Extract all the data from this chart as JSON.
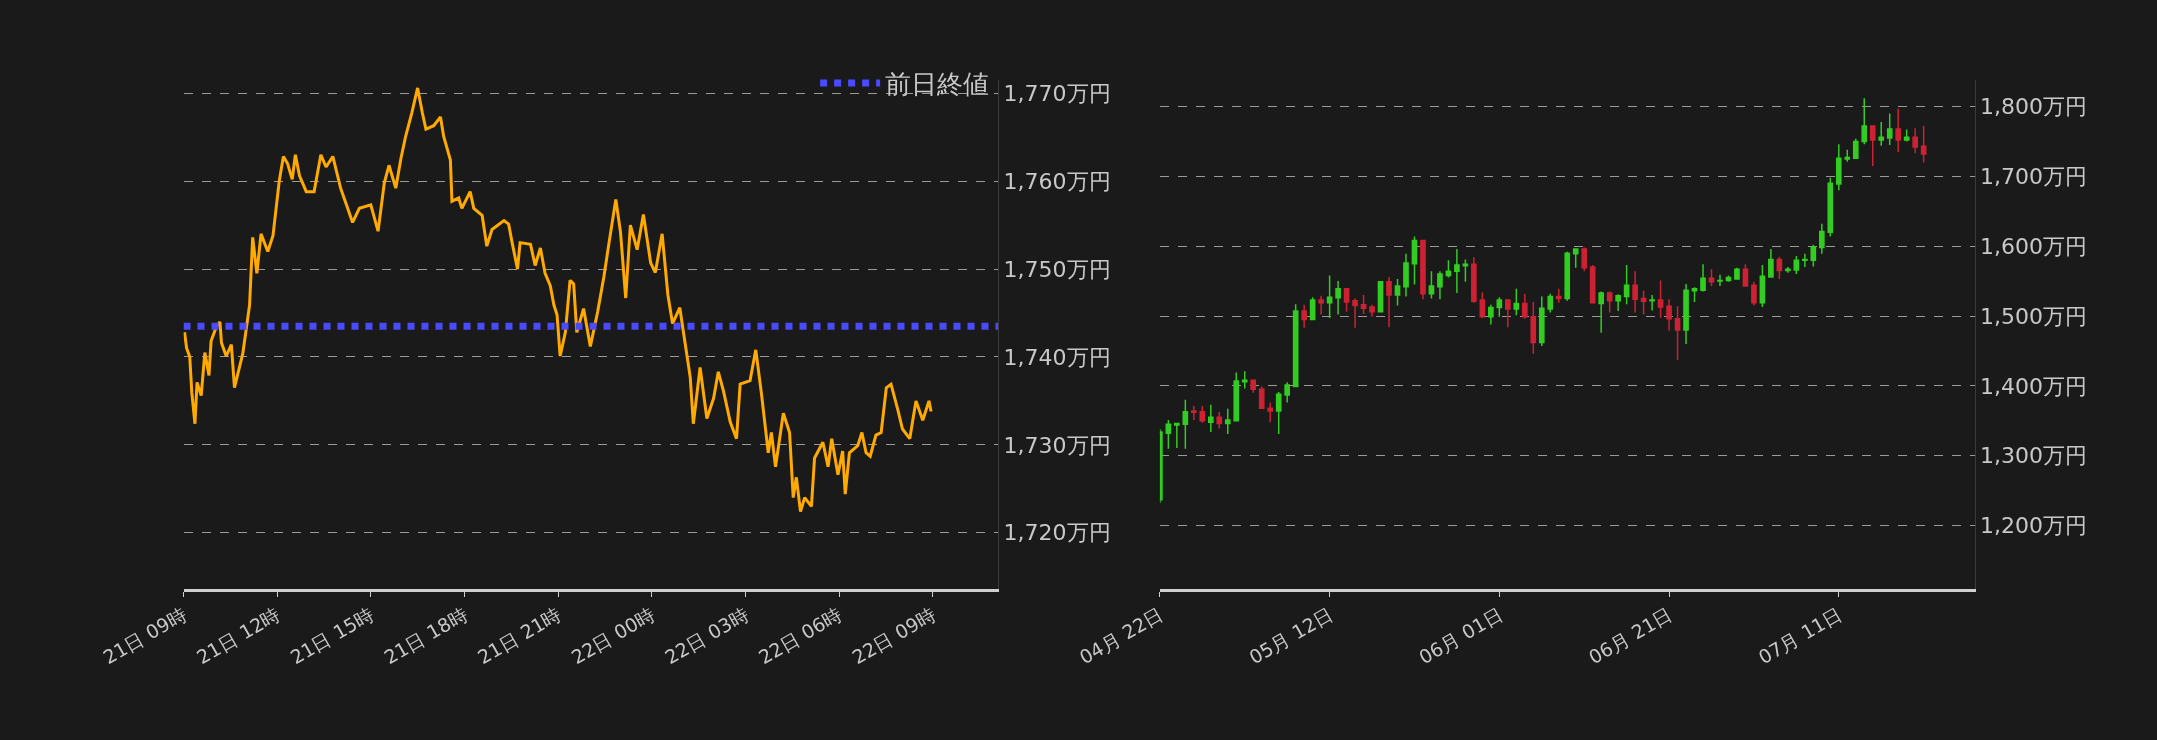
{
  "chart_data": [
    {
      "type": "line",
      "xlim": [
        "--07-21T09:00",
        "--07-22T11:06"
      ],
      "ylim": [
        1713.6,
        1771.5
      ],
      "xticks": [
        {
          "value": "--07-21T09:00",
          "label": "21日 09時"
        },
        {
          "value": "--07-21T12:00",
          "label": "21日 12時"
        },
        {
          "value": "--07-21T15:00",
          "label": "21日 15時"
        },
        {
          "value": "--07-21T18:00",
          "label": "21日 18時"
        },
        {
          "value": "--07-21T21:00",
          "label": "21日 21時"
        },
        {
          "value": "--07-22T00:00",
          "label": "22日 00時"
        },
        {
          "value": "--07-22T03:00",
          "label": "22日 03時"
        },
        {
          "value": "--07-22T06:00",
          "label": "22日 06時"
        },
        {
          "value": "--07-22T09:00",
          "label": "22日 09時"
        }
      ],
      "yticks": [
        {
          "value": 1720,
          "label": "1,720万円"
        },
        {
          "value": 1730,
          "label": "1,730万円"
        },
        {
          "value": 1740,
          "label": "1,740万円"
        },
        {
          "value": 1750,
          "label": "1,750万円"
        },
        {
          "value": 1760,
          "label": "1,760万円"
        },
        {
          "value": 1770,
          "label": "1,770万円"
        }
      ],
      "grid": "y",
      "legend": "top right",
      "marker": "none",
      "line_style": "solid",
      "x": [
        "--07-21T09:02",
        "--07-21T09:06",
        "--07-21T09:12",
        "--07-21T09:16",
        "--07-21T09:22",
        "--07-21T09:26",
        "--07-21T09:34",
        "--07-21T09:41",
        "--07-21T09:49",
        "--07-21T09:53",
        "--07-21T10:03",
        "--07-21T10:10",
        "--07-21T10:13",
        "--07-21T10:22",
        "--07-21T10:32",
        "--07-21T10:38",
        "--07-21T10:54",
        "--07-21T11:07",
        "--07-21T11:13",
        "--07-21T11:21",
        "--07-21T11:29",
        "--07-21T11:42",
        "--07-21T11:52",
        "--07-21T12:04",
        "--07-21T12:12",
        "--07-21T12:20",
        "--07-21T12:29",
        "--07-21T12:35",
        "--07-21T12:43",
        "--07-21T12:56",
        "--07-21T13:11",
        "--07-21T13:24",
        "--07-21T13:34",
        "--07-21T13:47",
        "--07-21T14:02",
        "--07-21T14:12",
        "--07-21T14:25",
        "--07-21T14:38",
        "--07-21T15:00",
        "--07-21T15:14",
        "--07-21T15:26",
        "--07-21T15:35",
        "--07-21T15:48",
        "--07-21T15:58",
        "--07-21T16:07",
        "--07-21T16:19",
        "--07-21T16:30",
        "--07-21T16:39",
        "--07-21T16:46",
        "--07-21T17:01",
        "--07-21T17:14",
        "--07-21T17:20",
        "--07-21T17:33",
        "--07-21T17:36",
        "--07-21T17:49",
        "--07-21T17:55",
        "--07-21T18:11",
        "--07-21T18:18",
        "--07-21T18:34",
        "--07-21T18:43",
        "--07-21T18:53",
        "--07-21T19:16",
        "--07-21T19:25",
        "--07-21T19:31",
        "--07-21T19:42",
        "--07-21T19:47",
        "--07-21T20:07",
        "--07-21T20:16",
        "--07-21T20:26",
        "--07-21T20:35",
        "--07-21T20:45",
        "--07-21T20:52",
        "--07-21T20:58",
        "--07-21T21:04",
        "--07-21T21:14",
        "--07-21T21:23",
        "--07-21T21:30",
        "--07-21T21:36",
        "--07-21T21:49",
        "--07-21T22:02",
        "--07-21T22:16",
        "--07-21T22:28",
        "--07-21T22:38",
        "--07-21T22:51",
        "--07-21T23:00",
        "--07-21T23:10",
        "--07-21T23:19",
        "--07-21T23:32",
        "--07-21T23:44",
        "--07-21T23:58",
        "--07-22T00:07",
        "--07-22T00:20",
        "--07-22T00:31",
        "--07-22T00:40",
        "--07-22T00:54",
        "--07-22T01:01",
        "--07-22T01:14",
        "--07-22T01:20",
        "--07-22T01:33",
        "--07-22T01:46",
        "--07-22T01:59",
        "--07-22T02:08",
        "--07-22T02:18",
        "--07-22T02:31",
        "--07-22T02:43",
        "--07-22T02:50",
        "--07-22T03:09",
        "--07-22T03:20",
        "--07-22T03:31",
        "--07-22T03:44",
        "--07-22T03:50",
        "--07-22T03:58",
        "--07-22T04:13",
        "--07-22T04:25",
        "--07-22T04:32",
        "--07-22T04:38",
        "--07-22T04:46",
        "--07-22T04:54",
        "--07-22T05:07",
        "--07-22T05:13",
        "--07-22T05:29",
        "--07-22T05:39",
        "--07-22T05:46",
        "--07-22T05:58",
        "--07-22T06:07",
        "--07-22T06:12",
        "--07-22T06:20",
        "--07-22T06:36",
        "--07-22T06:44",
        "--07-22T06:52",
        "--07-22T07:00",
        "--07-22T07:11",
        "--07-22T07:21",
        "--07-22T07:31",
        "--07-22T07:40",
        "--07-22T07:53",
        "--07-22T08:02",
        "--07-22T08:16",
        "--07-22T08:28",
        "--07-22T08:41",
        "--07-22T08:53",
        "--07-22T08:57"
      ],
      "series": [
        {
          "color": "#ffaa00",
          "values": [
            1742.8,
            1741.0,
            1740.0,
            1735.9,
            1732.4,
            1737.1,
            1735.6,
            1740.5,
            1737.9,
            1741.8,
            1743.4,
            1744.0,
            1741.6,
            1740.1,
            1741.4,
            1736.5,
            1740.4,
            1745.9,
            1753.6,
            1749.5,
            1754.0,
            1752.0,
            1753.8,
            1760.0,
            1762.8,
            1762.0,
            1760.2,
            1763.0,
            1760.6,
            1758.8,
            1758.8,
            1763.0,
            1761.6,
            1762.8,
            1759.2,
            1757.5,
            1755.3,
            1756.9,
            1757.3,
            1754.3,
            1759.8,
            1761.8,
            1759.2,
            1762.6,
            1765.1,
            1767.8,
            1770.6,
            1767.8,
            1765.9,
            1766.3,
            1767.3,
            1765.1,
            1762.4,
            1757.7,
            1758.1,
            1756.9,
            1758.8,
            1756.9,
            1756.1,
            1752.6,
            1754.5,
            1755.5,
            1755.1,
            1753.2,
            1750.0,
            1753.0,
            1752.8,
            1750.4,
            1752.4,
            1749.5,
            1748.1,
            1745.9,
            1744.8,
            1740.1,
            1742.8,
            1748.7,
            1748.3,
            1742.8,
            1745.5,
            1741.2,
            1745.1,
            1749.1,
            1753.0,
            1757.9,
            1754.2,
            1746.7,
            1755.0,
            1752.2,
            1756.2,
            1750.7,
            1749.6,
            1754.0,
            1747.1,
            1743.8,
            1745.6,
            1742.8,
            1737.7,
            1732.4,
            1738.8,
            1733.0,
            1735.3,
            1738.3,
            1736.1,
            1732.6,
            1730.7,
            1736.9,
            1737.3,
            1740.8,
            1735.8,
            1729.1,
            1731.4,
            1727.5,
            1733.6,
            1731.4,
            1724.0,
            1726.3,
            1722.4,
            1724.0,
            1723.0,
            1728.5,
            1730.3,
            1727.5,
            1730.7,
            1726.6,
            1729.3,
            1724.4,
            1729.1,
            1729.9,
            1731.4,
            1729.1,
            1728.7,
            1731.1,
            1731.4,
            1736.5,
            1736.9,
            1734.0,
            1731.8,
            1730.7,
            1735.0,
            1732.8,
            1735.0,
            1733.8
          ]
        }
      ],
      "ref_lines": [
        {
          "axis": "y",
          "value": 1743.5,
          "label": "前日終値",
          "color": "#4a4aff",
          "line_style": "dotted"
        }
      ]
    },
    {
      "type": "candlestick",
      "xlim": [
        "--04-22",
        "--07-27"
      ],
      "ylim": [
        1109,
        1838
      ],
      "xticks": [
        {
          "value": "--04-22",
          "label": "04月 22日"
        },
        {
          "value": "--05-12",
          "label": "05月 12日"
        },
        {
          "value": "--06-01",
          "label": "06月 01日"
        },
        {
          "value": "--06-21",
          "label": "06月 21日"
        },
        {
          "value": "--07-11",
          "label": "07月 11日"
        }
      ],
      "yticks": [
        {
          "value": 1200,
          "label": "1,200万円"
        },
        {
          "value": 1300,
          "label": "1,300万円"
        },
        {
          "value": 1400,
          "label": "1,400万円"
        },
        {
          "value": 1500,
          "label": "1,500万円"
        },
        {
          "value": 1600,
          "label": "1,600万円"
        },
        {
          "value": 1700,
          "label": "1,700万円"
        },
        {
          "value": 1800,
          "label": "1,800万円"
        }
      ],
      "grid": "y",
      "x": [
        "--04-22",
        "--04-23",
        "--04-24",
        "--04-25",
        "--04-26",
        "--04-27",
        "--04-28",
        "--04-29",
        "--04-30",
        "--05-01",
        "--05-02",
        "--05-03",
        "--05-04",
        "--05-05",
        "--05-06",
        "--05-07",
        "--05-08",
        "--05-09",
        "--05-10",
        "--05-11",
        "--05-12",
        "--05-13",
        "--05-14",
        "--05-15",
        "--05-16",
        "--05-17",
        "--05-18",
        "--05-19",
        "--05-20",
        "--05-21",
        "--05-22",
        "--05-23",
        "--05-24",
        "--05-25",
        "--05-26",
        "--05-27",
        "--05-28",
        "--05-29",
        "--05-30",
        "--05-31",
        "--06-01",
        "--06-02",
        "--06-03",
        "--06-04",
        "--06-05",
        "--06-06",
        "--06-07",
        "--06-08",
        "--06-09",
        "--06-10",
        "--06-11",
        "--06-12",
        "--06-13",
        "--06-14",
        "--06-15",
        "--06-16",
        "--06-17",
        "--06-18",
        "--06-19",
        "--06-20",
        "--06-21",
        "--06-22",
        "--06-23",
        "--06-24",
        "--06-25",
        "--06-26",
        "--06-27",
        "--06-28",
        "--06-29",
        "--06-30",
        "--07-01",
        "--07-02",
        "--07-03",
        "--07-04",
        "--07-05",
        "--07-06",
        "--07-07",
        "--07-08",
        "--07-09",
        "--07-10",
        "--07-11",
        "--07-12",
        "--07-13",
        "--07-14",
        "--07-15",
        "--07-16",
        "--07-17",
        "--07-18",
        "--07-19",
        "--07-20",
        "--07-21"
      ],
      "ohlc": [
        [
          1237,
          1338,
          1232,
          1334
        ],
        [
          1332,
          1351,
          1310,
          1345
        ],
        [
          1344,
          1347,
          1311,
          1346
        ],
        [
          1345,
          1380,
          1310,
          1363
        ],
        [
          1364,
          1371,
          1351,
          1362
        ],
        [
          1363,
          1371,
          1347,
          1350
        ],
        [
          1348,
          1373,
          1334,
          1355
        ],
        [
          1355,
          1363,
          1339,
          1346
        ],
        [
          1346,
          1367,
          1331,
          1351
        ],
        [
          1350,
          1419,
          1349,
          1407
        ],
        [
          1406,
          1421,
          1396,
          1408
        ],
        [
          1408,
          1409,
          1390,
          1395
        ],
        [
          1395,
          1399,
          1367,
          1368
        ],
        [
          1368,
          1376,
          1348,
          1364
        ],
        [
          1364,
          1391,
          1331,
          1388
        ],
        [
          1387,
          1405,
          1376,
          1401
        ],
        [
          1399,
          1517,
          1398,
          1507
        ],
        [
          1507,
          1516,
          1483,
          1495
        ],
        [
          1495,
          1527,
          1494,
          1523
        ],
        [
          1523,
          1529,
          1502,
          1519
        ],
        [
          1519,
          1558,
          1497,
          1527
        ],
        [
          1526,
          1550,
          1502,
          1539
        ],
        [
          1539,
          1540,
          1506,
          1520
        ],
        [
          1522,
          1525,
          1483,
          1515
        ],
        [
          1516,
          1530,
          1503,
          1511
        ],
        [
          1513,
          1516,
          1499,
          1506
        ],
        [
          1506,
          1550,
          1505,
          1549
        ],
        [
          1549,
          1556,
          1484,
          1530
        ],
        [
          1530,
          1553,
          1515,
          1543
        ],
        [
          1542,
          1589,
          1528,
          1576
        ],
        [
          1575,
          1614,
          1545,
          1608
        ],
        [
          1608,
          1609,
          1524,
          1532
        ],
        [
          1532,
          1564,
          1525,
          1543
        ],
        [
          1542,
          1564,
          1524,
          1560
        ],
        [
          1558,
          1580,
          1555,
          1564
        ],
        [
          1564,
          1596,
          1533,
          1573
        ],
        [
          1572,
          1581,
          1549,
          1574
        ],
        [
          1574,
          1584,
          1519,
          1521
        ],
        [
          1523,
          1534,
          1497,
          1499
        ],
        [
          1499,
          1516,
          1488,
          1512
        ],
        [
          1512,
          1527,
          1499,
          1523
        ],
        [
          1523,
          1524,
          1484,
          1510
        ],
        [
          1510,
          1539,
          1501,
          1518
        ],
        [
          1518,
          1532,
          1496,
          1499
        ],
        [
          1499,
          1520,
          1446,
          1462
        ],
        [
          1462,
          1528,
          1457,
          1511
        ],
        [
          1510,
          1532,
          1505,
          1528
        ],
        [
          1528,
          1539,
          1519,
          1525
        ],
        [
          1525,
          1592,
          1522,
          1590
        ],
        [
          1589,
          1597,
          1569,
          1596
        ],
        [
          1596,
          1598,
          1564,
          1569
        ],
        [
          1570,
          1573,
          1518,
          1519
        ],
        [
          1518,
          1535,
          1476,
          1533
        ],
        [
          1533,
          1535,
          1505,
          1522
        ],
        [
          1522,
          1531,
          1507,
          1529
        ],
        [
          1528,
          1573,
          1517,
          1544
        ],
        [
          1544,
          1564,
          1505,
          1524
        ],
        [
          1525,
          1536,
          1502,
          1521
        ],
        [
          1522,
          1530,
          1508,
          1523
        ],
        [
          1523,
          1551,
          1497,
          1513
        ],
        [
          1514,
          1524,
          1479,
          1496
        ],
        [
          1496,
          1514,
          1437,
          1480
        ],
        [
          1480,
          1546,
          1460,
          1537
        ],
        [
          1536,
          1541,
          1520,
          1539
        ],
        [
          1537,
          1574,
          1535,
          1554
        ],
        [
          1554,
          1567,
          1543,
          1549
        ],
        [
          1550,
          1559,
          1543,
          1551
        ],
        [
          1551,
          1558,
          1549,
          1555
        ],
        [
          1553,
          1569,
          1552,
          1567
        ],
        [
          1567,
          1574,
          1542,
          1543
        ],
        [
          1544,
          1549,
          1515,
          1519
        ],
        [
          1519,
          1573,
          1513,
          1557
        ],
        [
          1556,
          1596,
          1555,
          1581
        ],
        [
          1581,
          1585,
          1553,
          1565
        ],
        [
          1565,
          1570,
          1562,
          1567
        ],
        [
          1566,
          1586,
          1560,
          1580
        ],
        [
          1580,
          1589,
          1570,
          1581
        ],
        [
          1580,
          1602,
          1571,
          1599
        ],
        [
          1598,
          1632,
          1589,
          1621
        ],
        [
          1620,
          1698,
          1614,
          1690
        ],
        [
          1689,
          1746,
          1680,
          1726
        ],
        [
          1725,
          1738,
          1721,
          1727
        ],
        [
          1726,
          1754,
          1725,
          1750
        ],
        [
          1750,
          1812,
          1746,
          1772
        ],
        [
          1772,
          1773,
          1715,
          1752
        ],
        [
          1752,
          1778,
          1744,
          1756
        ],
        [
          1755,
          1790,
          1745,
          1768
        ],
        [
          1768,
          1797,
          1735,
          1752
        ],
        [
          1752,
          1767,
          1750,
          1756
        ],
        [
          1756,
          1769,
          1733,
          1742
        ],
        [
          1743,
          1772,
          1720,
          1732
        ]
      ],
      "colors": [
        "#33cc22",
        "#33cc22",
        "#33cc22",
        "#33cc22",
        "#cc2233",
        "#cc2233",
        "#33cc22",
        "#cc2233",
        "#33cc22",
        "#33cc22",
        "#33cc22",
        "#cc2233",
        "#cc2233",
        "#cc2233",
        "#33cc22",
        "#33cc22",
        "#33cc22",
        "#cc2233",
        "#33cc22",
        "#cc2233",
        "#33cc22",
        "#33cc22",
        "#cc2233",
        "#cc2233",
        "#cc2233",
        "#cc2233",
        "#33cc22",
        "#cc2233",
        "#33cc22",
        "#33cc22",
        "#33cc22",
        "#cc2233",
        "#33cc22",
        "#33cc22",
        "#33cc22",
        "#33cc22",
        "#33cc22",
        "#cc2233",
        "#cc2233",
        "#33cc22",
        "#33cc22",
        "#cc2233",
        "#33cc22",
        "#cc2233",
        "#cc2233",
        "#33cc22",
        "#33cc22",
        "#cc2233",
        "#33cc22",
        "#33cc22",
        "#cc2233",
        "#cc2233",
        "#33cc22",
        "#cc2233",
        "#33cc22",
        "#33cc22",
        "#cc2233",
        "#cc2233",
        "#33cc22",
        "#cc2233",
        "#cc2233",
        "#cc2233",
        "#33cc22",
        "#33cc22",
        "#33cc22",
        "#cc2233",
        "#33cc22",
        "#33cc22",
        "#33cc22",
        "#cc2233",
        "#cc2233",
        "#33cc22",
        "#33cc22",
        "#cc2233",
        "#33cc22",
        "#33cc22",
        "#33cc22",
        "#33cc22",
        "#33cc22",
        "#33cc22",
        "#33cc22",
        "#33cc22",
        "#33cc22",
        "#33cc22",
        "#cc2233",
        "#33cc22",
        "#33cc22",
        "#cc2233",
        "#33cc22",
        "#cc2233",
        "#cc2233"
      ]
    }
  ]
}
